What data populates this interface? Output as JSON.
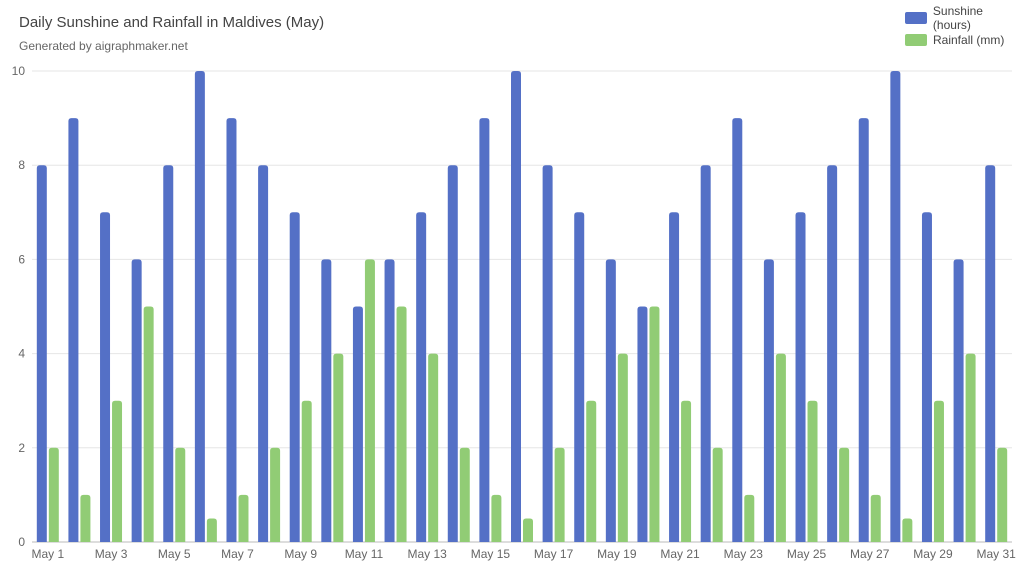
{
  "chart_data": {
    "type": "bar",
    "title": "Daily Sunshine and Rainfall in Maldives (May)",
    "subtitle": "Generated by aigraphmaker.net",
    "categories": [
      "May 1",
      "May 2",
      "May 3",
      "May 4",
      "May 5",
      "May 6",
      "May 7",
      "May 8",
      "May 9",
      "May 10",
      "May 11",
      "May 12",
      "May 13",
      "May 14",
      "May 15",
      "May 16",
      "May 17",
      "May 18",
      "May 19",
      "May 20",
      "May 21",
      "May 22",
      "May 23",
      "May 24",
      "May 25",
      "May 26",
      "May 27",
      "May 28",
      "May 29",
      "May 30",
      "May 31"
    ],
    "visible_x_ticks": [
      "May 1",
      "May 3",
      "May 5",
      "May 7",
      "May 9",
      "May 11",
      "May 13",
      "May 15",
      "May 17",
      "May 19",
      "May 21",
      "May 23",
      "May 25",
      "May 27",
      "May 29",
      "May 31"
    ],
    "series": [
      {
        "name": "Sunshine (hours)",
        "color": "#5470c6",
        "values": [
          8,
          9,
          7,
          6,
          8,
          10,
          9,
          8,
          7,
          6,
          5,
          6,
          7,
          8,
          9,
          10,
          8,
          7,
          6,
          5,
          7,
          8,
          9,
          6,
          7,
          8,
          9,
          10,
          7,
          6,
          8
        ]
      },
      {
        "name": "Rainfall (mm)",
        "color": "#91cc75",
        "values": [
          2,
          1,
          3,
          5,
          2,
          0.5,
          1,
          2,
          3,
          4,
          6,
          5,
          4,
          2,
          1,
          0.5,
          2,
          3,
          4,
          5,
          3,
          2,
          1,
          4,
          3,
          2,
          1,
          0.5,
          3,
          4,
          2
        ]
      }
    ],
    "ylim": [
      0,
      10
    ],
    "y_ticks": [
      0,
      2,
      4,
      6,
      8,
      10
    ],
    "grid": true,
    "legend_position": "top-right"
  }
}
